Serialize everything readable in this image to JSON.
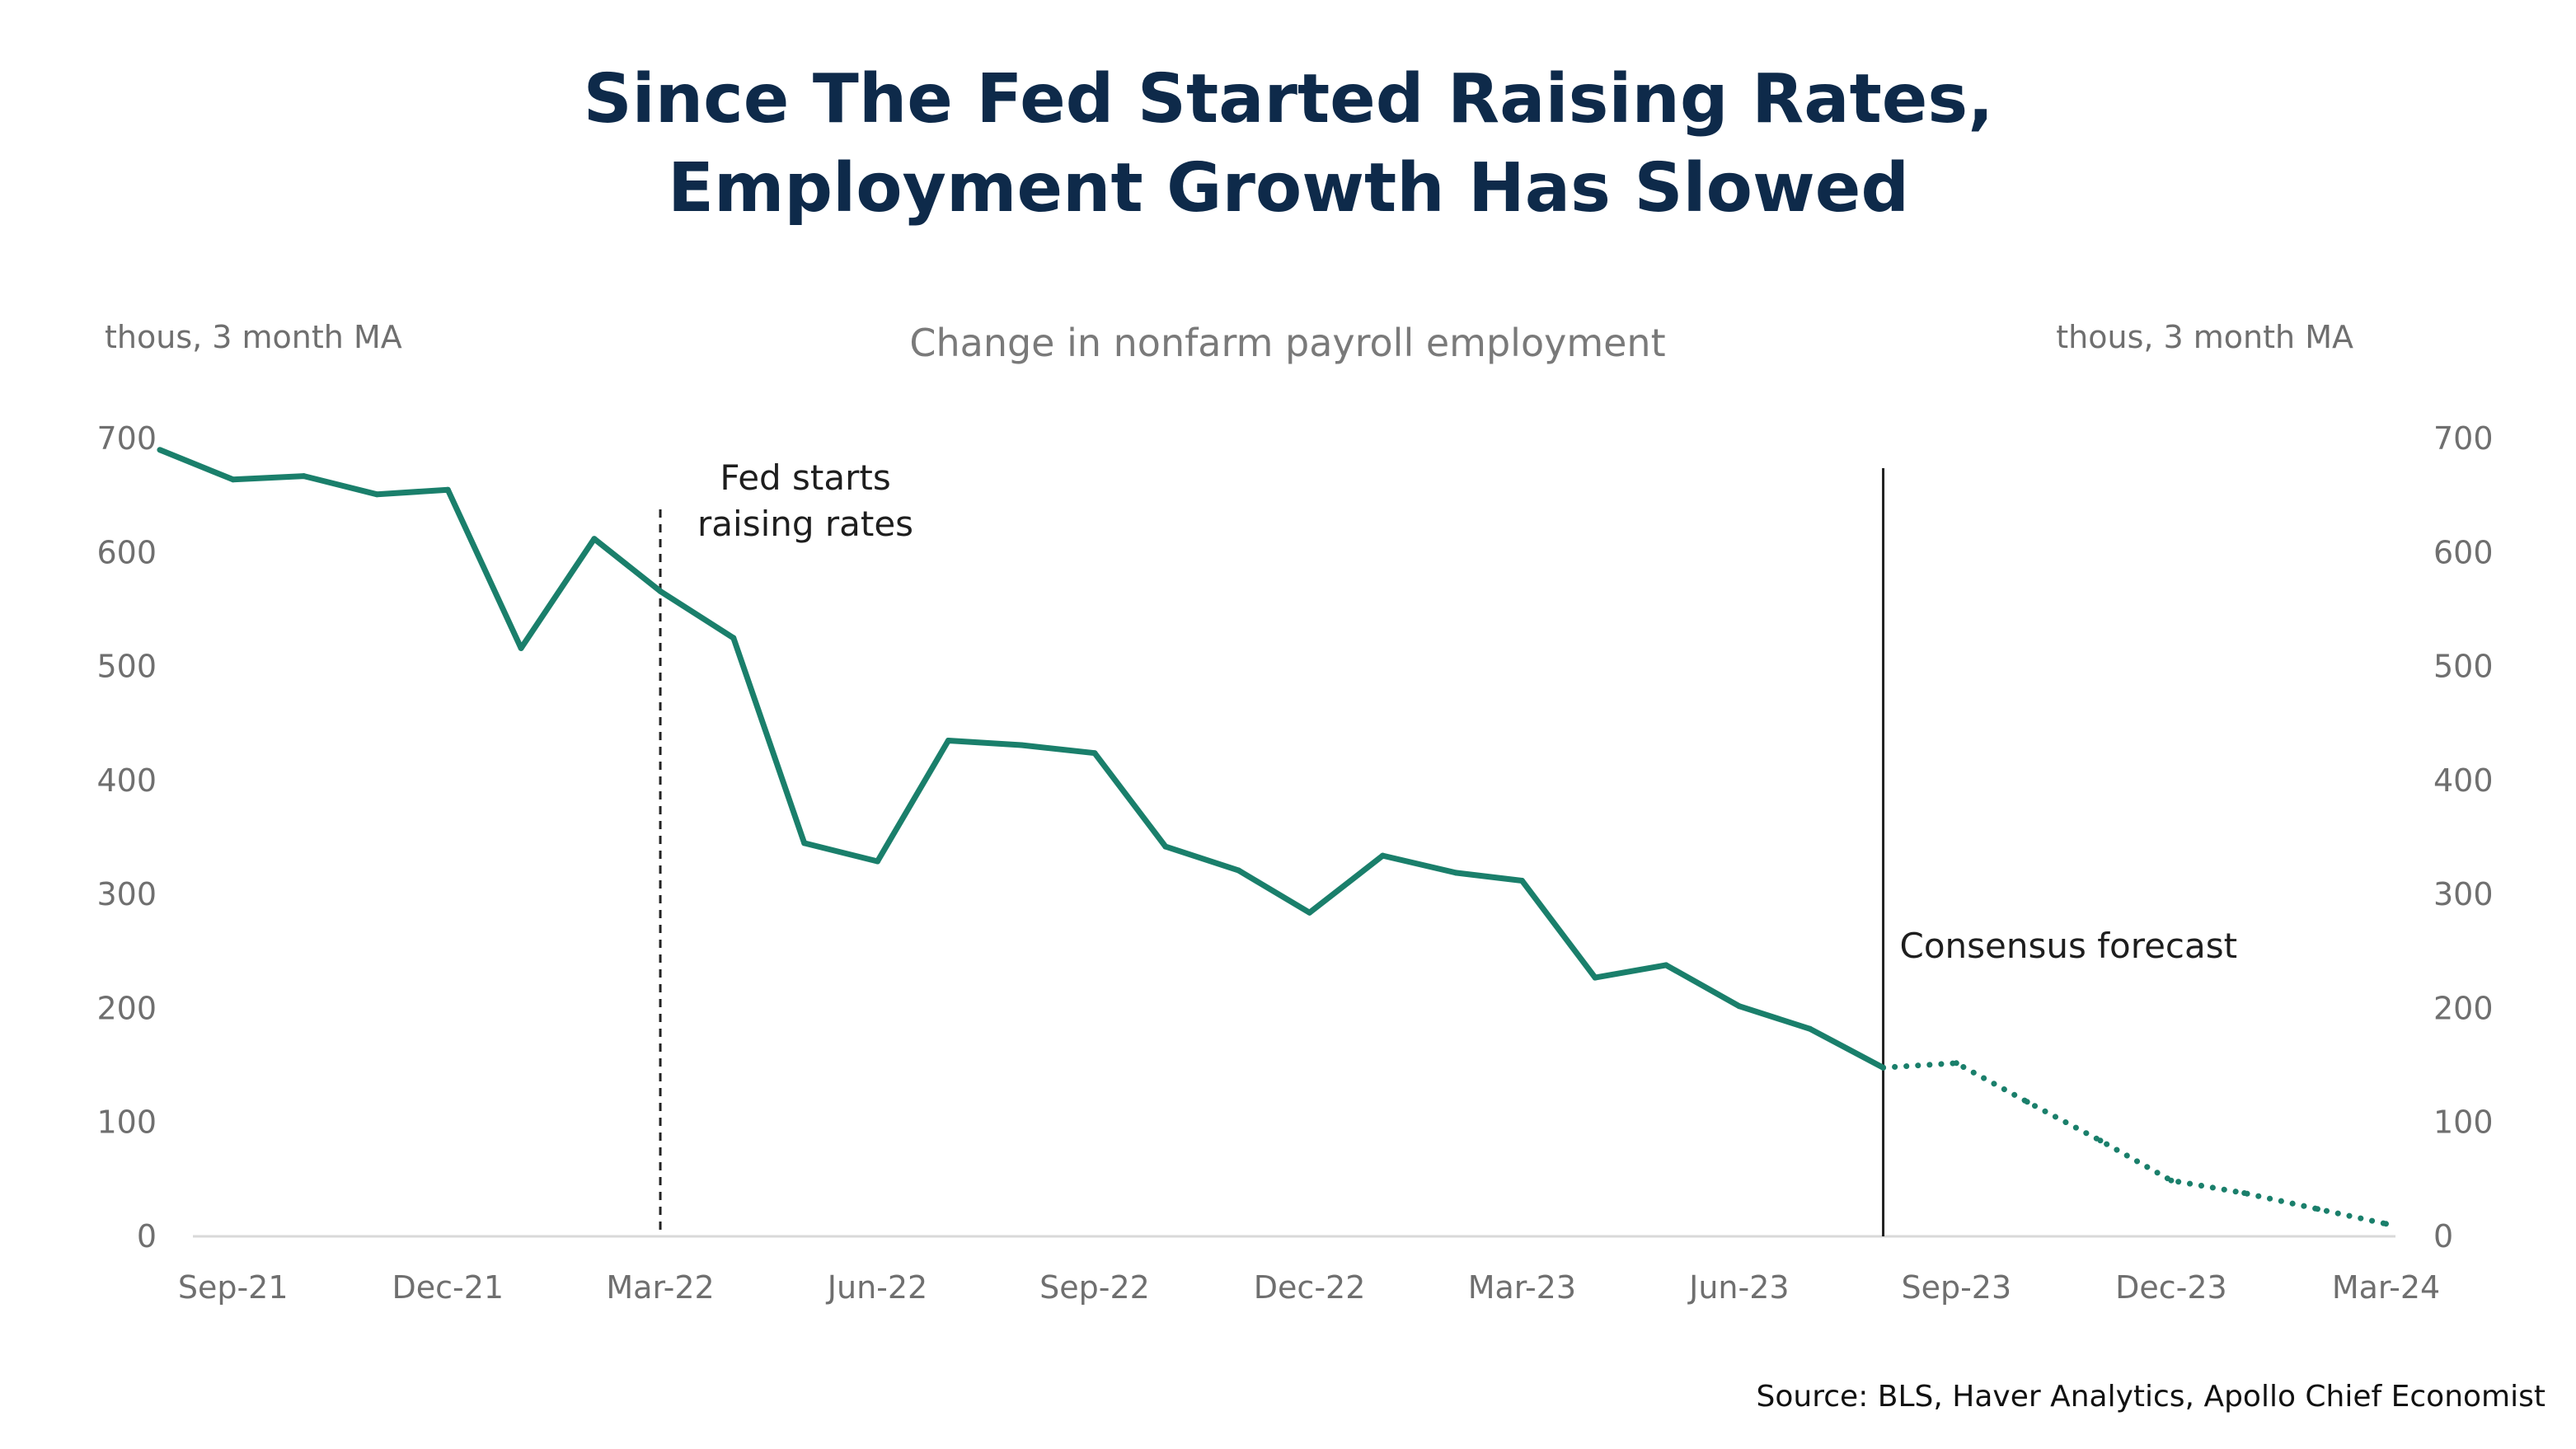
{
  "chart_data": {
    "type": "line",
    "title_lines": [
      "Since The Fed Started Raising Rates,",
      "Employment Growth Has Slowed"
    ],
    "subtitle": "Change in nonfarm payroll employment",
    "y_unit_left": "thous, 3 month MA",
    "y_unit_right": "thous, 3 month MA",
    "x_tick_labels": [
      "Sep-21",
      "Dec-21",
      "Mar-22",
      "Jun-22",
      "Sep-22",
      "Dec-22",
      "Mar-23",
      "Jun-23",
      "Sep-23",
      "Dec-23",
      "Mar-24"
    ],
    "y_ticks": [
      0,
      100,
      200,
      300,
      400,
      500,
      600,
      700
    ],
    "ylim": [
      0,
      700
    ],
    "xlim": [
      "2021-08-15",
      "2024-03-05"
    ],
    "grid": false,
    "series": [
      {
        "line_style": "solid",
        "color": "#1a7f6b",
        "points": [
          {
            "x": "2021-08-01",
            "y": 690
          },
          {
            "x": "2021-09-01",
            "y": 664
          },
          {
            "x": "2021-10-01",
            "y": 667
          },
          {
            "x": "2021-11-01",
            "y": 651
          },
          {
            "x": "2021-12-01",
            "y": 655
          },
          {
            "x": "2022-01-01",
            "y": 516
          },
          {
            "x": "2022-02-01",
            "y": 612
          },
          {
            "x": "2022-03-01",
            "y": 566
          },
          {
            "x": "2022-04-01",
            "y": 525
          },
          {
            "x": "2022-05-01",
            "y": 345
          },
          {
            "x": "2022-06-01",
            "y": 329
          },
          {
            "x": "2022-07-01",
            "y": 435
          },
          {
            "x": "2022-08-01",
            "y": 431
          },
          {
            "x": "2022-09-01",
            "y": 424
          },
          {
            "x": "2022-10-01",
            "y": 342
          },
          {
            "x": "2022-11-01",
            "y": 321
          },
          {
            "x": "2022-12-01",
            "y": 284
          },
          {
            "x": "2023-01-01",
            "y": 334
          },
          {
            "x": "2023-02-01",
            "y": 319
          },
          {
            "x": "2023-03-01",
            "y": 312
          },
          {
            "x": "2023-04-01",
            "y": 227
          },
          {
            "x": "2023-05-01",
            "y": 238
          },
          {
            "x": "2023-06-01",
            "y": 202
          },
          {
            "x": "2023-07-01",
            "y": 182
          },
          {
            "x": "2023-08-01",
            "y": 148
          }
        ]
      },
      {
        "line_style": "dotted",
        "color": "#1a7f6b",
        "points": [
          {
            "x": "2023-08-01",
            "y": 148
          },
          {
            "x": "2023-09-01",
            "y": 152
          },
          {
            "x": "2023-10-01",
            "y": 118
          },
          {
            "x": "2023-11-01",
            "y": 84
          },
          {
            "x": "2023-12-01",
            "y": 49
          },
          {
            "x": "2024-01-01",
            "y": 38
          },
          {
            "x": "2024-02-01",
            "y": 24
          },
          {
            "x": "2024-03-01",
            "y": 11
          }
        ]
      }
    ],
    "annotations": [
      {
        "x": "2022-03-01",
        "lines": [
          "Fed starts",
          "raising rates"
        ],
        "line_style": "dashed"
      },
      {
        "x": "2023-08-01",
        "lines": [
          "Consensus forecast"
        ],
        "line_style": "solid"
      }
    ],
    "source": "Source:  BLS, Haver Analytics, Apollo Chief Economist"
  },
  "colors": {
    "title": "#0e2a4a",
    "series": "#1a7f6b",
    "axis": "#d9d9d9",
    "tick_text": "#6f6f6f",
    "annotation_line": "#222222"
  }
}
